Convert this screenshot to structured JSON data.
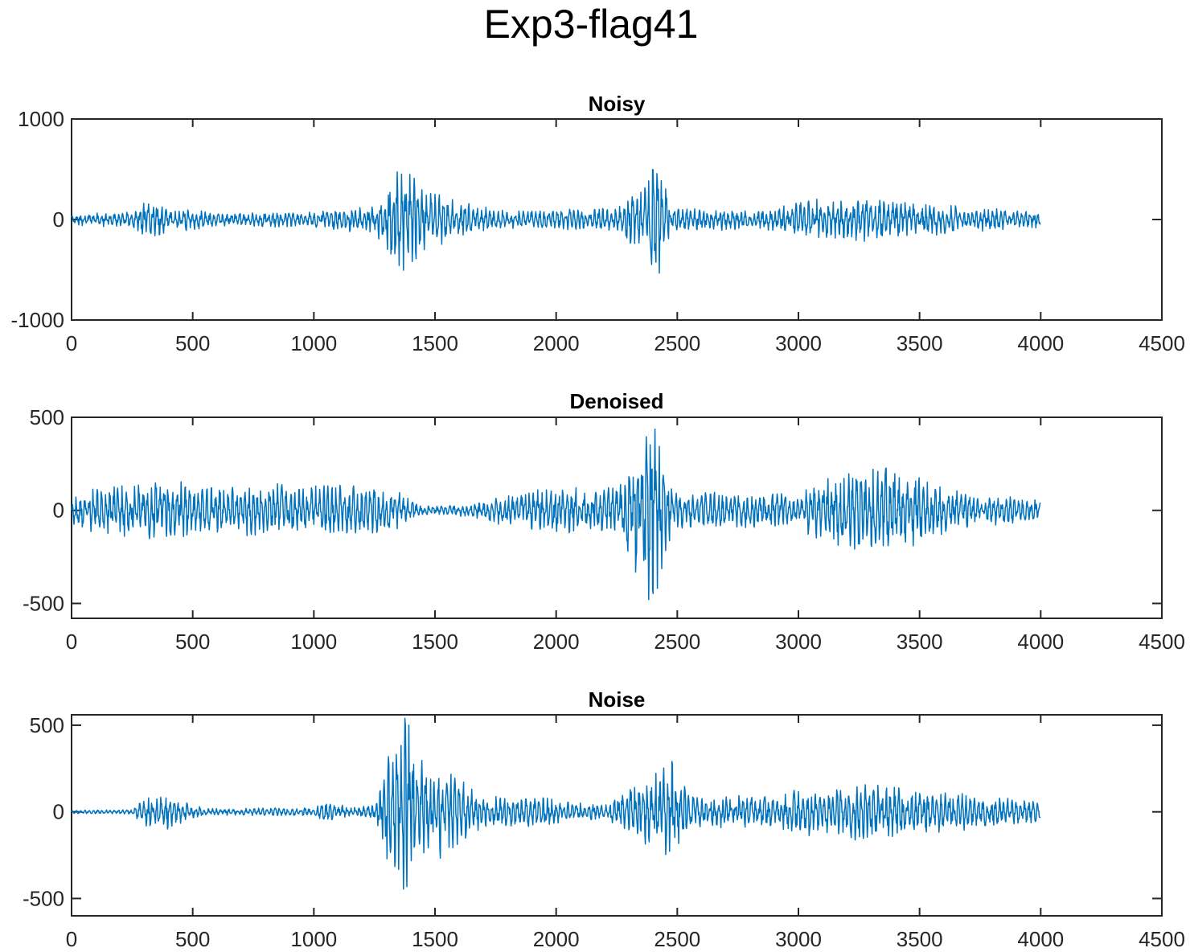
{
  "figure_title": "Exp3-flag41",
  "chart_data": [
    {
      "type": "line",
      "title": "Noisy",
      "xlabel": "",
      "ylabel": "",
      "xlim": [
        0,
        4500
      ],
      "ylim": [
        -1000,
        1000
      ],
      "xticks": [
        0,
        500,
        1000,
        1500,
        2000,
        2500,
        3000,
        3500,
        4000,
        4500
      ],
      "yticks": [
        -1000,
        0,
        1000
      ],
      "xtick_labels": [
        "0",
        "500",
        "1000",
        "1500",
        "2000",
        "2500",
        "3000",
        "3500",
        "4000",
        "4500"
      ],
      "ytick_labels": [
        "-1000",
        "0",
        "1000"
      ],
      "color": "#0072BD",
      "grid": false,
      "series": [
        {
          "n_samples": 4000,
          "envelope": [
            [
              0,
              60
            ],
            [
              250,
              80
            ],
            [
              300,
              180
            ],
            [
              600,
              70
            ],
            [
              1000,
              80
            ],
            [
              1250,
              150
            ],
            [
              1300,
              350
            ],
            [
              1370,
              560
            ],
            [
              1450,
              350
            ],
            [
              1600,
              180
            ],
            [
              1800,
              90
            ],
            [
              2250,
              120
            ],
            [
              2300,
              250
            ],
            [
              2380,
              400
            ],
            [
              2400,
              650
            ],
            [
              2440,
              500
            ],
            [
              2480,
              120
            ],
            [
              2800,
              100
            ],
            [
              2900,
              120
            ],
            [
              2950,
              180
            ],
            [
              3150,
              220
            ],
            [
              3300,
              220
            ],
            [
              3500,
              170
            ],
            [
              3700,
              130
            ],
            [
              4000,
              80
            ]
          ]
        }
      ]
    },
    {
      "type": "line",
      "title": "Denoised",
      "xlabel": "",
      "ylabel": "",
      "xlim": [
        0,
        4500
      ],
      "ylim": [
        -580,
        500
      ],
      "xticks": [
        0,
        500,
        1000,
        1500,
        2000,
        2500,
        3000,
        3500,
        4000,
        4500
      ],
      "yticks": [
        -500,
        0,
        500
      ],
      "xtick_labels": [
        "0",
        "500",
        "1000",
        "1500",
        "2000",
        "2500",
        "3000",
        "3500",
        "4000",
        "4500"
      ],
      "ytick_labels": [
        "-500",
        "0",
        "500"
      ],
      "color": "#0072BD",
      "grid": false,
      "series": [
        {
          "n_samples": 4000,
          "envelope": [
            [
              0,
              80
            ],
            [
              100,
              130
            ],
            [
              300,
              170
            ],
            [
              600,
              140
            ],
            [
              1000,
              150
            ],
            [
              1300,
              140
            ],
            [
              1400,
              60
            ],
            [
              1500,
              20
            ],
            [
              1550,
              30
            ],
            [
              1650,
              40
            ],
            [
              1800,
              90
            ],
            [
              2000,
              130
            ],
            [
              2250,
              130
            ],
            [
              2300,
              280
            ],
            [
              2400,
              550
            ],
            [
              2430,
              400
            ],
            [
              2480,
              100
            ],
            [
              2700,
              100
            ],
            [
              2900,
              100
            ],
            [
              3000,
              80
            ],
            [
              3050,
              160
            ],
            [
              3300,
              250
            ],
            [
              3400,
              250
            ],
            [
              3500,
              180
            ],
            [
              3700,
              100
            ],
            [
              4000,
              60
            ]
          ]
        }
      ]
    },
    {
      "type": "line",
      "title": "Noise",
      "xlabel": "",
      "ylabel": "",
      "xlim": [
        0,
        4500
      ],
      "ylim": [
        -600,
        560
      ],
      "xticks": [
        0,
        500,
        1000,
        1500,
        2000,
        2500,
        3000,
        3500,
        4000,
        4500
      ],
      "yticks": [
        -500,
        0,
        500
      ],
      "xtick_labels": [
        "0",
        "500",
        "1000",
        "1500",
        "2000",
        "2500",
        "3000",
        "3500",
        "4000",
        "4500"
      ],
      "ytick_labels": [
        "-500",
        "0",
        "500"
      ],
      "color": "#0072BD",
      "grid": false,
      "series": [
        {
          "n_samples": 4000,
          "envelope": [
            [
              0,
              10
            ],
            [
              250,
              15
            ],
            [
              300,
              80
            ],
            [
              400,
              110
            ],
            [
              480,
              60
            ],
            [
              550,
              20
            ],
            [
              1000,
              25
            ],
            [
              1050,
              60
            ],
            [
              1150,
              30
            ],
            [
              1250,
              40
            ],
            [
              1300,
              350
            ],
            [
              1380,
              560
            ],
            [
              1450,
              350
            ],
            [
              1700,
              100
            ],
            [
              2000,
              80
            ],
            [
              2200,
              40
            ],
            [
              2300,
              150
            ],
            [
              2400,
              230
            ],
            [
              2470,
              350
            ],
            [
              2550,
              100
            ],
            [
              2900,
              100
            ],
            [
              3000,
              140
            ],
            [
              3200,
              170
            ],
            [
              3400,
              150
            ],
            [
              3600,
              120
            ],
            [
              3800,
              90
            ],
            [
              4000,
              60
            ]
          ]
        }
      ]
    }
  ]
}
